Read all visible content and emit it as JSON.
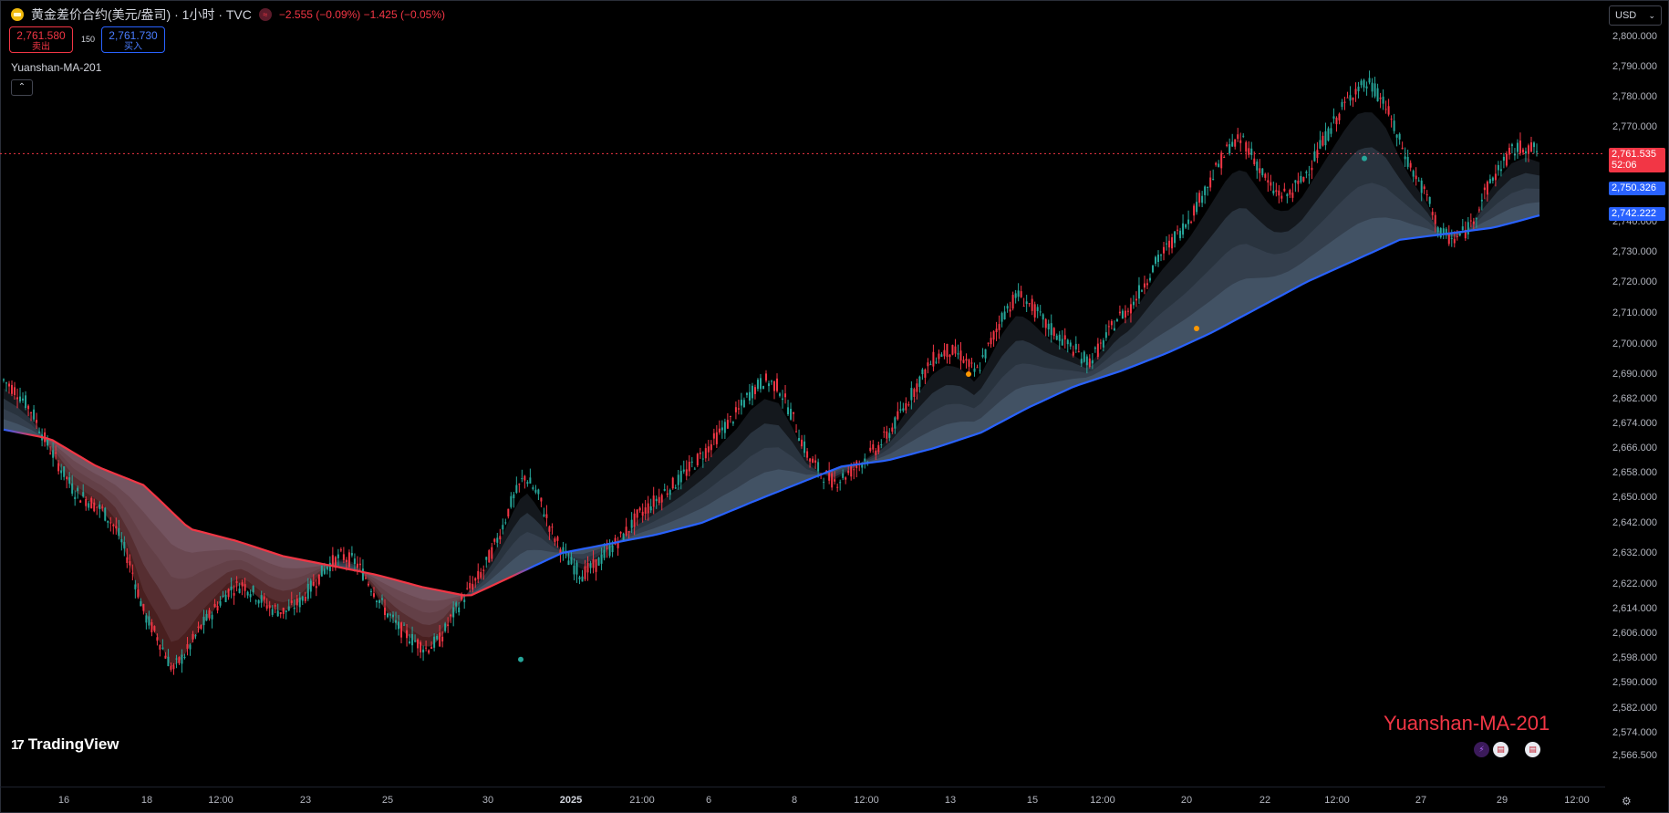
{
  "header": {
    "title": "黄金差价合约(美元/盎司) · 1小时 · TVC",
    "change_icon": "≈",
    "change": "−2.555 (−0.09%)  −1.425 (−0.05%)"
  },
  "trade": {
    "sell_price": "2,761.580",
    "sell_label": "卖出",
    "spread": "150",
    "buy_price": "2,761.730",
    "buy_label": "买入"
  },
  "indicator": {
    "name": "Yuanshan-MA-201",
    "collapse": "⌃"
  },
  "currency": {
    "value": "USD",
    "caret": "⌄"
  },
  "price_tags": {
    "last": "2,761.535",
    "countdown": "52:06",
    "ma1": "2,750.326",
    "ma2": "2,742.222"
  },
  "y_ticks": [
    {
      "p": 2800,
      "t": "2,800.000"
    },
    {
      "p": 2790,
      "t": "2,790.000"
    },
    {
      "p": 2780,
      "t": "2,780.000"
    },
    {
      "p": 2770,
      "t": "2,770.000"
    },
    {
      "p": 2740,
      "t": "2,740.000"
    },
    {
      "p": 2730,
      "t": "2,730.000"
    },
    {
      "p": 2720,
      "t": "2,720.000"
    },
    {
      "p": 2710,
      "t": "2,710.000"
    },
    {
      "p": 2700,
      "t": "2,700.000"
    },
    {
      "p": 2690,
      "t": "2,690.000"
    },
    {
      "p": 2682,
      "t": "2,682.000"
    },
    {
      "p": 2674,
      "t": "2,674.000"
    },
    {
      "p": 2666,
      "t": "2,666.000"
    },
    {
      "p": 2658,
      "t": "2,658.000"
    },
    {
      "p": 2650,
      "t": "2,650.000"
    },
    {
      "p": 2642,
      "t": "2,642.000"
    },
    {
      "p": 2632,
      "t": "2,632.000"
    },
    {
      "p": 2622,
      "t": "2,622.000"
    },
    {
      "p": 2614,
      "t": "2,614.000"
    },
    {
      "p": 2606,
      "t": "2,606.000"
    },
    {
      "p": 2598,
      "t": "2,598.000"
    },
    {
      "p": 2590,
      "t": "2,590.000"
    },
    {
      "p": 2582,
      "t": "2,582.000"
    },
    {
      "p": 2574,
      "t": "2,574.000"
    },
    {
      "p": 2566.5,
      "t": "2,566.500"
    }
  ],
  "x_ticks": [
    {
      "t": "16"
    },
    {
      "t": "18"
    },
    {
      "t": "12:00"
    },
    {
      "t": "23"
    },
    {
      "t": "25"
    },
    {
      "t": "30"
    },
    {
      "t": "2025",
      "bold": true
    },
    {
      "t": "21:00"
    },
    {
      "t": "6"
    },
    {
      "t": "8"
    },
    {
      "t": "12:00"
    },
    {
      "t": "13"
    },
    {
      "t": "15"
    },
    {
      "t": "12:00"
    },
    {
      "t": "20"
    },
    {
      "t": "22"
    },
    {
      "t": "12:00"
    },
    {
      "t": "27"
    },
    {
      "t": "29"
    },
    {
      "t": "12:00"
    }
  ],
  "logo": {
    "mark": "17",
    "text": "TradingView"
  },
  "watermark": "Yuanshan-MA-201",
  "colors": {
    "up": "#26a69a",
    "down": "#f23645",
    "ma_blue": "#2962ff",
    "ma_red": "#f23645"
  },
  "chart_data": {
    "type": "candlestick",
    "ylim": [
      2566.5,
      2800
    ],
    "last_price": 2761.535,
    "path": [
      [
        0,
        2688
      ],
      [
        2,
        2684
      ],
      [
        4,
        2678
      ],
      [
        6,
        2668
      ],
      [
        8,
        2660
      ],
      [
        10,
        2652
      ],
      [
        12,
        2649
      ],
      [
        14,
        2646
      ],
      [
        16,
        2640
      ],
      [
        18,
        2628
      ],
      [
        20,
        2612
      ],
      [
        22,
        2604
      ],
      [
        24,
        2594
      ],
      [
        26,
        2600
      ],
      [
        28,
        2608
      ],
      [
        30,
        2614
      ],
      [
        32,
        2620
      ],
      [
        34,
        2622
      ],
      [
        36,
        2618
      ],
      [
        38,
        2614
      ],
      [
        40,
        2613
      ],
      [
        42,
        2616
      ],
      [
        44,
        2622
      ],
      [
        46,
        2628
      ],
      [
        48,
        2631
      ],
      [
        50,
        2629
      ],
      [
        52,
        2622
      ],
      [
        54,
        2614
      ],
      [
        56,
        2608
      ],
      [
        58,
        2604
      ],
      [
        60,
        2601
      ],
      [
        62,
        2604
      ],
      [
        64,
        2613
      ],
      [
        66,
        2620
      ],
      [
        68,
        2626
      ],
      [
        70,
        2636
      ],
      [
        72,
        2648
      ],
      [
        74,
        2657
      ],
      [
        76,
        2650
      ],
      [
        78,
        2638
      ],
      [
        80,
        2630
      ],
      [
        82,
        2625
      ],
      [
        84,
        2628
      ],
      [
        86,
        2633
      ],
      [
        88,
        2638
      ],
      [
        90,
        2644
      ],
      [
        92,
        2648
      ],
      [
        94,
        2652
      ],
      [
        96,
        2656
      ],
      [
        98,
        2661
      ],
      [
        100,
        2666
      ],
      [
        102,
        2672
      ],
      [
        104,
        2677
      ],
      [
        106,
        2684
      ],
      [
        108,
        2688
      ],
      [
        110,
        2686
      ],
      [
        112,
        2676
      ],
      [
        114,
        2664
      ],
      [
        116,
        2658
      ],
      [
        118,
        2655
      ],
      [
        120,
        2658
      ],
      [
        122,
        2662
      ],
      [
        124,
        2666
      ],
      [
        126,
        2672
      ],
      [
        128,
        2680
      ],
      [
        130,
        2688
      ],
      [
        132,
        2695
      ],
      [
        134,
        2698
      ],
      [
        136,
        2696
      ],
      [
        138,
        2690
      ],
      [
        140,
        2700
      ],
      [
        142,
        2710
      ],
      [
        144,
        2716
      ],
      [
        146,
        2712
      ],
      [
        148,
        2706
      ],
      [
        150,
        2702
      ],
      [
        152,
        2698
      ],
      [
        154,
        2694
      ],
      [
        156,
        2700
      ],
      [
        158,
        2708
      ],
      [
        160,
        2712
      ],
      [
        162,
        2720
      ],
      [
        164,
        2728
      ],
      [
        166,
        2734
      ],
      [
        168,
        2740
      ],
      [
        170,
        2748
      ],
      [
        172,
        2756
      ],
      [
        174,
        2764
      ],
      [
        176,
        2766
      ],
      [
        178,
        2758
      ],
      [
        180,
        2750
      ],
      [
        182,
        2748
      ],
      [
        184,
        2752
      ],
      [
        186,
        2760
      ],
      [
        188,
        2768
      ],
      [
        190,
        2776
      ],
      [
        192,
        2783
      ],
      [
        194,
        2784
      ],
      [
        196,
        2778
      ],
      [
        198,
        2766
      ],
      [
        200,
        2756
      ],
      [
        202,
        2748
      ],
      [
        204,
        2736
      ],
      [
        206,
        2734
      ],
      [
        208,
        2738
      ],
      [
        210,
        2748
      ],
      [
        212,
        2756
      ],
      [
        214,
        2762
      ],
      [
        216,
        2764
      ],
      [
        218,
        2762
      ]
    ],
    "ma201": [
      [
        0,
        2672
      ],
      [
        20,
        2669
      ],
      [
        40,
        2660
      ],
      [
        60,
        2654
      ],
      [
        80,
        2640
      ],
      [
        100,
        2636
      ],
      [
        120,
        2631
      ],
      [
        140,
        2628
      ],
      [
        160,
        2625
      ],
      [
        180,
        2621
      ],
      [
        200,
        2618
      ],
      [
        220,
        2625
      ],
      [
        240,
        2632
      ],
      [
        260,
        2635
      ],
      [
        280,
        2638
      ],
      [
        300,
        2642
      ],
      [
        320,
        2648
      ],
      [
        340,
        2654
      ],
      [
        360,
        2660
      ],
      [
        380,
        2662
      ],
      [
        400,
        2666
      ],
      [
        420,
        2671
      ],
      [
        440,
        2679
      ],
      [
        460,
        2686
      ],
      [
        480,
        2691
      ],
      [
        500,
        2697
      ],
      [
        520,
        2704
      ],
      [
        540,
        2712
      ],
      [
        560,
        2720
      ],
      [
        580,
        2727
      ],
      [
        600,
        2734
      ],
      [
        620,
        2736
      ],
      [
        640,
        2738
      ],
      [
        660,
        2742
      ]
    ],
    "ribbon_offsets": [
      3,
      6,
      9,
      12
    ],
    "signal_dots": [
      [
        0.0,
        2597.5,
        "teal"
      ],
      [
        0.0,
        2690,
        "orange"
      ],
      [
        0.0,
        2705,
        "orange"
      ],
      [
        0.0,
        2760,
        "teal"
      ]
    ]
  }
}
